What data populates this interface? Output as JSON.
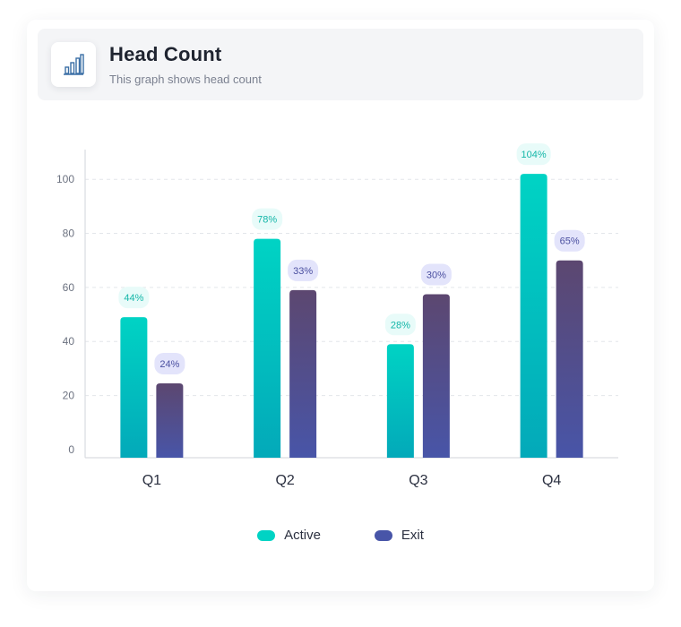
{
  "header": {
    "title": "Head Count",
    "subtitle": "This graph shows head count",
    "icon": "bar-chart-icon"
  },
  "colors": {
    "active_top": "#00d3c4",
    "active_bottom": "#03a9b9",
    "exit_top": "#5c4770",
    "exit_bottom": "#4855a8",
    "active_label_bg": "#e8fbf9",
    "active_label_text": "#13b6a8",
    "exit_label_bg": "#e3e4fb",
    "exit_label_text": "#4a4fa0",
    "grid": "#e3e6ea",
    "axis_text": "#6c7280"
  },
  "chart_data": {
    "type": "bar",
    "categories": [
      "Q1",
      "Q2",
      "Q3",
      "Q4"
    ],
    "series": [
      {
        "name": "Active",
        "values": [
          49,
          78,
          39,
          102
        ],
        "labels": [
          "44%",
          "78%",
          "28%",
          "104%"
        ]
      },
      {
        "name": "Exit",
        "values": [
          24.5,
          59,
          57.5,
          70
        ],
        "labels": [
          "24%",
          "33%",
          "30%",
          "65%"
        ]
      }
    ],
    "yticks": [
      0,
      20,
      40,
      60,
      80,
      100
    ],
    "ylim": [
      -3,
      111
    ],
    "grid": true,
    "legend": "bottom-center"
  }
}
